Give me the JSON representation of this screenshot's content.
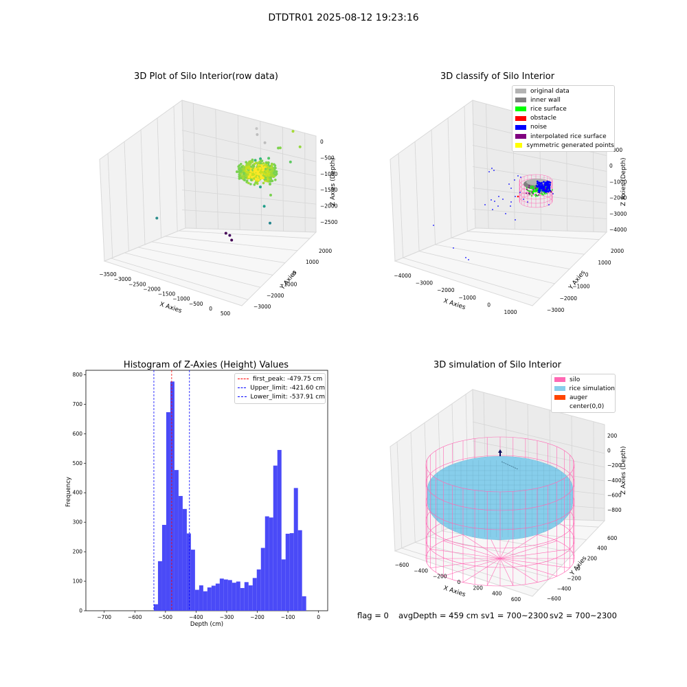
{
  "figure": {
    "suptitle": "DTDTR01 2025-08-12 19:23:16",
    "status": {
      "flag": "flag = 0",
      "avg_depth": "avgDepth = 459 cm",
      "sv1": "sv1 = 700~2300",
      "sv2": "sv2 = 700~2300"
    }
  },
  "colors": {
    "original_data": "#b3b3b3",
    "inner_wall": "#808080",
    "rice_surface": "#00ff00",
    "obstacle": "#ff0000",
    "noise": "#0000ff",
    "interpolated_rice_surface": "#800080",
    "symmetric_generated_points": "#ffff00",
    "histogram_bar": "#4a4af7",
    "first_peak_line": "#ff0000",
    "limit_line": "#0000ff",
    "silo": "#ff69b4",
    "rice_simulation": "#87ceeb",
    "auger": "#ff4500",
    "auger_arrow": "#0b0b5c"
  },
  "chart_data": [
    {
      "type": "scatter",
      "id": "raw",
      "title": "3D Plot of Silo Interior(row data)",
      "projection": "3d",
      "xlabel": "X Axies",
      "ylabel": "Y Axies",
      "zlabel": "Z Axies (Depth)",
      "x_ticks": [
        "−3500",
        "−3000",
        "−2500",
        "−2000",
        "−1500",
        "−1000",
        "−500",
        "0",
        "500"
      ],
      "y_ticks": [
        "−3000",
        "−2000",
        "−1000",
        "0",
        "1000",
        "2000"
      ],
      "z_ticks": [
        "0",
        "−500",
        "−1000",
        "−1500",
        "−2000",
        "−2500"
      ],
      "xlim": [
        -3700,
        600
      ],
      "ylim": [
        -3300,
        2500
      ],
      "zlim": [
        -2900,
        100
      ],
      "colormap": "viridis",
      "points": [
        [
          -2900,
          -1200,
          -2400,
          "#2c8d8c"
        ],
        [
          -1500,
          700,
          -2900,
          "#450457"
        ],
        [
          -1200,
          400,
          -2900,
          "#440154"
        ],
        [
          -1300,
          500,
          -2850,
          "#471063"
        ],
        [
          -900,
          1500,
          -1500,
          "#36b677"
        ],
        [
          -700,
          1400,
          -1400,
          "#2db27d"
        ],
        [
          -500,
          1500,
          -1500,
          "#44bf70"
        ],
        [
          -600,
          1200,
          -1550,
          "#35b779"
        ],
        [
          -400,
          1300,
          -1300,
          "#52c569"
        ],
        [
          -300,
          1800,
          -1200,
          "#7ad151"
        ],
        [
          -200,
          1700,
          -1150,
          "#86d549"
        ],
        [
          -1000,
          1900,
          -1100,
          "#bdbdbd"
        ],
        [
          -800,
          2000,
          -1250,
          "#bdbdbd"
        ],
        [
          -1100,
          2100,
          -1050,
          "#c4c4c4"
        ],
        [
          -500,
          900,
          -1800,
          "#22a884"
        ],
        [
          -300,
          700,
          -2100,
          "#1f9e89"
        ],
        [
          0,
          400,
          -2300,
          "#25858e"
        ],
        [
          200,
          1500,
          -1300,
          "#5ec962"
        ],
        [
          300,
          2000,
          -1100,
          "#95d840"
        ],
        [
          0,
          2200,
          -900,
          "#a5db36"
        ]
      ]
    },
    {
      "type": "scatter",
      "id": "classify",
      "title": "3D classify of Silo Interior",
      "projection": "3d",
      "xlabel": "X Axies",
      "ylabel": "Y Axies",
      "zlabel": "Z Axies (Depth)",
      "x_ticks": [
        "−4000",
        "−3000",
        "−2000",
        "−1000",
        "0",
        "1000"
      ],
      "y_ticks": [
        "−3000",
        "−2000",
        "−1000",
        "0",
        "1000",
        "2000"
      ],
      "z_ticks": [
        "1000",
        "0",
        "−1000",
        "−2000",
        "−3000",
        "−4000"
      ],
      "legend": [
        "original data",
        "inner wall",
        "rice surface",
        "obstacle",
        "noise",
        "interpolated rice surface",
        "symmetric generated points"
      ]
    },
    {
      "type": "bar",
      "id": "histogram",
      "title": "Histogram of Z-Axies (Height) Values",
      "xlabel": "Depth (cm)",
      "ylabel": "Frequency",
      "xlim": [
        -760,
        30
      ],
      "ylim": [
        0,
        815
      ],
      "x_ticks": [
        -700,
        -600,
        -500,
        -400,
        -300,
        -200,
        -100,
        0
      ],
      "x_tick_labels": [
        "−700",
        "−600",
        "−500",
        "−400",
        "−300",
        "−200",
        "−100",
        "0"
      ],
      "y_ticks": [
        0,
        100,
        200,
        300,
        400,
        500,
        600,
        700,
        800
      ],
      "bins_start": -537.91,
      "bin_width": 13.45,
      "values": [
        22,
        168,
        291,
        673,
        777,
        477,
        389,
        345,
        262,
        207,
        71,
        86,
        66,
        79,
        85,
        92,
        109,
        106,
        104,
        95,
        99,
        77,
        97,
        86,
        111,
        140,
        213,
        320,
        316,
        492,
        545,
        174,
        261,
        263,
        416,
        273,
        49
      ],
      "vlines": [
        {
          "label": "first_peak: -479.75 cm",
          "x": -479.75,
          "color": "#ff0000"
        },
        {
          "label": "Upper_limit: -421.60 cm",
          "x": -421.6,
          "color": "#0000ff"
        },
        {
          "label": "Lower_limit: -537.91 cm",
          "x": -537.91,
          "color": "#0000ff"
        }
      ]
    },
    {
      "type": "scatter",
      "id": "simulation",
      "title": "3D simulation of Silo Interior",
      "projection": "3d",
      "xlabel": "X Axies",
      "ylabel": "Y Axies",
      "zlabel": "Z Axies (Depth)",
      "x_ticks": [
        "−600",
        "−400",
        "−200",
        "0",
        "200",
        "400",
        "600"
      ],
      "y_ticks": [
        "−600",
        "−400",
        "−200",
        "0",
        "200",
        "400",
        "600"
      ],
      "z_ticks": [
        "200",
        "0",
        "−200",
        "−400",
        "−600",
        "−800"
      ],
      "legend": [
        "silo",
        "rice simulation",
        "auger",
        "center(0,0)"
      ]
    }
  ]
}
